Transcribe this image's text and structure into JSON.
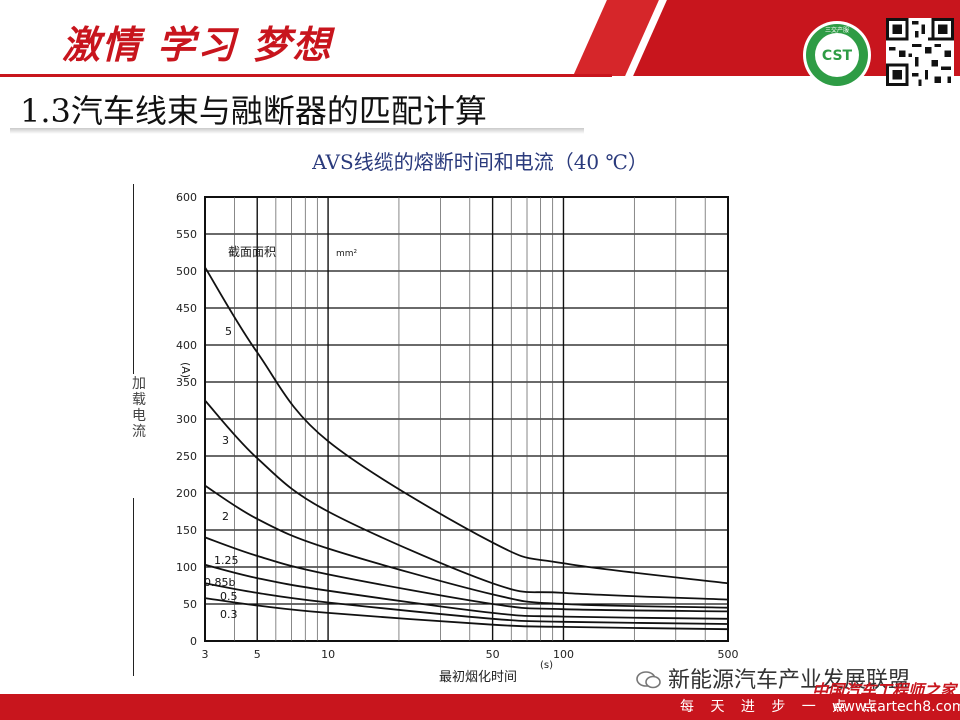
{
  "header": {
    "slogan": "激情 学习 梦想",
    "section_title": "1.3汽车线束与融断器的匹配计算",
    "logo_text": "CST",
    "logo_sub": "三交产服"
  },
  "chart_title": "AVS线缆的熔断时间和电流（40 ℃）",
  "side_ylabel": "加载电流",
  "footer": {
    "bottom_text": "每 天 进 步 一 点 点",
    "wechat_account": "新能源汽车产业发展联盟",
    "watermark": "中国汽车工程师之家",
    "watermark_url": "www.cartech8.com"
  },
  "colors": {
    "brand_red": "#c8151d",
    "title_blue": "#2a3a7c"
  },
  "chart_data": {
    "type": "line",
    "xlabel": "最初烟化时间",
    "xunit": "(s)",
    "ylabel": "(A)",
    "legend_title": "截面面积",
    "legend_unit": "mm²",
    "x_ticks": [
      3,
      5,
      10,
      50,
      100,
      500
    ],
    "x_scale": "log",
    "xlim": [
      3,
      500
    ],
    "y_ticks": [
      0,
      50,
      100,
      150,
      200,
      250,
      300,
      350,
      400,
      450,
      500,
      550,
      600
    ],
    "ylim": [
      0,
      600
    ],
    "grid": true,
    "x": [
      3,
      5,
      10,
      50,
      100,
      500
    ],
    "series": [
      {
        "name": "5",
        "values": [
          505,
          390,
          270,
          133,
          105,
          78
        ]
      },
      {
        "name": "3",
        "values": [
          325,
          247,
          175,
          78,
          65,
          56
        ]
      },
      {
        "name": "2",
        "values": [
          210,
          165,
          125,
          63,
          50,
          45
        ]
      },
      {
        "name": "1.25",
        "values": [
          140,
          115,
          90,
          50,
          43,
          40
        ]
      },
      {
        "name": "0.85b",
        "values": [
          103,
          85,
          68,
          38,
          33,
          30
        ]
      },
      {
        "name": "0.5",
        "values": [
          78,
          65,
          52,
          30,
          26,
          23
        ]
      },
      {
        "name": "0.3",
        "values": [
          58,
          48,
          38,
          22,
          19,
          16
        ]
      }
    ]
  }
}
